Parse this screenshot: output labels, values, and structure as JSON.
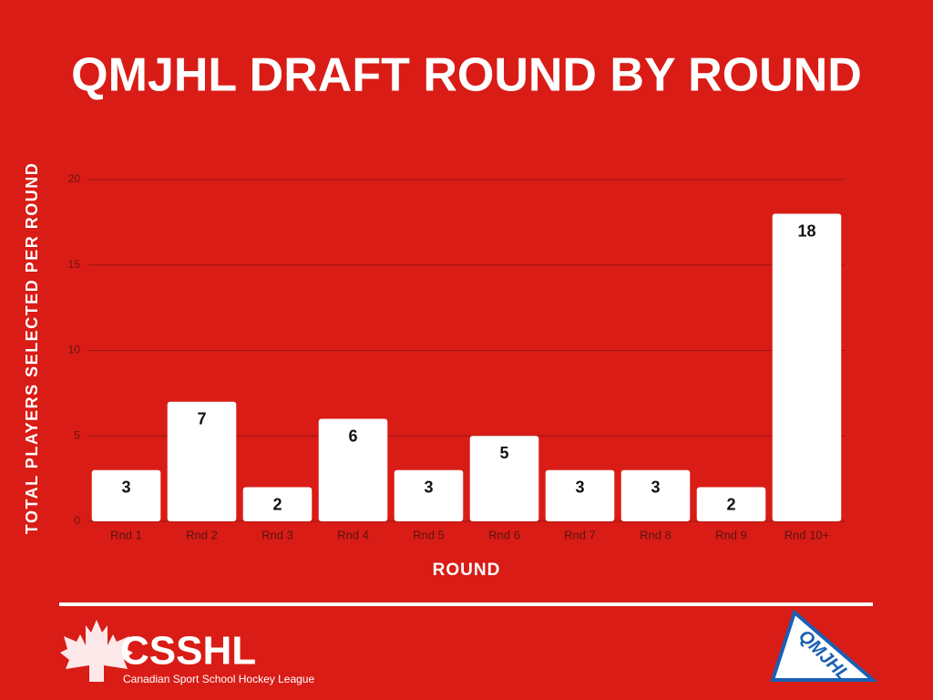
{
  "chart_data": {
    "type": "bar",
    "title": "QMJHL DRAFT ROUND BY ROUND",
    "y_label": "TOTAL PLAYERS SELECTED PER ROUND",
    "x_label": "ROUND",
    "categories": [
      "Rnd 1",
      "Rnd 2",
      "Rnd 3",
      "Rnd 4",
      "Rnd 5",
      "Rnd 6",
      "Rnd 7",
      "Rnd 8",
      "Rnd 9",
      "Rnd 10+"
    ],
    "values": [
      3,
      7,
      2,
      6,
      3,
      5,
      3,
      3,
      2,
      18
    ],
    "color": "#ffffff",
    "ylim": [
      0,
      20
    ],
    "yticks": [
      0,
      5,
      10,
      15,
      20
    ],
    "grid": true
  },
  "footer": {
    "left_logo": {
      "name": "CSSHL",
      "tagline": "Canadian Sport School Hockey League"
    },
    "right_logo": "QMJHL"
  }
}
